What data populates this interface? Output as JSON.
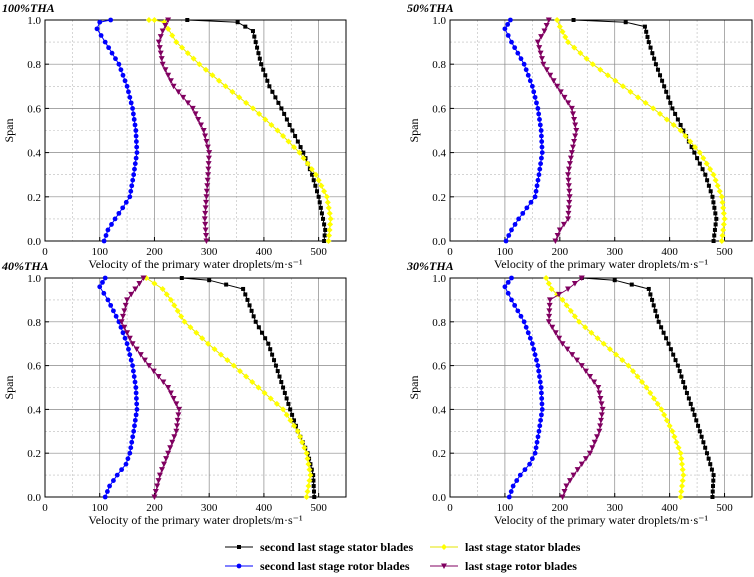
{
  "chart_data": [
    {
      "type": "line",
      "title": "100%THA",
      "xlabel": "Velocity of the primary water droplets/m·s⁻¹",
      "ylabel": "Span",
      "xlim": [
        0,
        550
      ],
      "ylim": [
        0,
        1.0
      ],
      "x_ticks": [
        "0",
        "100",
        "200",
        "300",
        "400",
        "500"
      ],
      "y_ticks": [
        "0.0",
        "0.2",
        "0.4",
        "0.6",
        "0.8",
        "1.0"
      ],
      "series": [
        {
          "name": "second last stage stator blades",
          "points": [
            [
              510,
              0
            ],
            [
              512,
              0.05
            ],
            [
              508,
              0.1
            ],
            [
              500,
              0.2
            ],
            [
              488,
              0.3
            ],
            [
              472,
              0.4
            ],
            [
              452,
              0.5
            ],
            [
              432,
              0.6
            ],
            [
              410,
              0.7
            ],
            [
              395,
              0.8
            ],
            [
              385,
              0.9
            ],
            [
              380,
              0.95
            ],
            [
              352,
              0.99
            ],
            [
              260,
              1.0
            ]
          ]
        },
        {
          "name": "last stage stator blades",
          "points": [
            [
              518,
              0
            ],
            [
              522,
              0.1
            ],
            [
              515,
              0.2
            ],
            [
              495,
              0.3
            ],
            [
              465,
              0.4
            ],
            [
              425,
              0.5
            ],
            [
              380,
              0.6
            ],
            [
              330,
              0.7
            ],
            [
              282,
              0.8
            ],
            [
              240,
              0.9
            ],
            [
              225,
              0.96
            ],
            [
              218,
              0.99
            ],
            [
              200,
              1.0
            ],
            [
              190,
              1.0
            ]
          ]
        },
        {
          "name": "second last stage rotor blades",
          "points": [
            [
              108,
              0
            ],
            [
              115,
              0.05
            ],
            [
              128,
              0.1
            ],
            [
              142,
              0.15
            ],
            [
              155,
              0.2
            ],
            [
              162,
              0.3
            ],
            [
              168,
              0.4
            ],
            [
              166,
              0.5
            ],
            [
              160,
              0.6
            ],
            [
              150,
              0.7
            ],
            [
              135,
              0.8
            ],
            [
              110,
              0.9
            ],
            [
              95,
              0.96
            ],
            [
              100,
              0.99
            ],
            [
              120,
              1.0
            ]
          ]
        },
        {
          "name": "last stage rotor blades",
          "points": [
            [
              295,
              0
            ],
            [
              292,
              0.1
            ],
            [
              295,
              0.2
            ],
            [
              298,
              0.3
            ],
            [
              300,
              0.4
            ],
            [
              290,
              0.5
            ],
            [
              270,
              0.6
            ],
            [
              235,
              0.7
            ],
            [
              215,
              0.8
            ],
            [
              208,
              0.9
            ],
            [
              215,
              0.95
            ],
            [
              225,
              1.0
            ]
          ]
        }
      ]
    },
    {
      "type": "line",
      "title": "50%THA",
      "xlabel": "Velocity of the primary water droplets/m·s⁻¹",
      "ylabel": "Span",
      "xlim": [
        0,
        550
      ],
      "ylim": [
        0,
        1.0
      ],
      "x_ticks": [
        "0",
        "100",
        "200",
        "300",
        "400",
        "500"
      ],
      "y_ticks": [
        "0.0",
        "0.2",
        "0.4",
        "0.6",
        "0.8",
        "1.0"
      ],
      "series": [
        {
          "name": "second last stage stator blades",
          "points": [
            [
              480,
              0
            ],
            [
              485,
              0.1
            ],
            [
              478,
              0.2
            ],
            [
              465,
              0.3
            ],
            [
              445,
              0.4
            ],
            [
              425,
              0.5
            ],
            [
              405,
              0.6
            ],
            [
              390,
              0.7
            ],
            [
              375,
              0.8
            ],
            [
              362,
              0.9
            ],
            [
              355,
              0.97
            ],
            [
              320,
              0.99
            ],
            [
              225,
              1.0
            ]
          ]
        },
        {
          "name": "last stage stator blades",
          "points": [
            [
              495,
              0
            ],
            [
              500,
              0.1
            ],
            [
              495,
              0.2
            ],
            [
              480,
              0.3
            ],
            [
              455,
              0.4
            ],
            [
              420,
              0.5
            ],
            [
              370,
              0.6
            ],
            [
              315,
              0.7
            ],
            [
              260,
              0.8
            ],
            [
              215,
              0.9
            ],
            [
              200,
              0.97
            ],
            [
              195,
              1.0
            ]
          ]
        },
        {
          "name": "second last stage rotor blades",
          "points": [
            [
              102,
              0
            ],
            [
              112,
              0.05
            ],
            [
              125,
              0.1
            ],
            [
              140,
              0.15
            ],
            [
              155,
              0.2
            ],
            [
              162,
              0.3
            ],
            [
              168,
              0.4
            ],
            [
              166,
              0.5
            ],
            [
              160,
              0.6
            ],
            [
              150,
              0.7
            ],
            [
              135,
              0.8
            ],
            [
              112,
              0.9
            ],
            [
              100,
              0.96
            ],
            [
              110,
              1.0
            ]
          ]
        },
        {
          "name": "last stage rotor blades",
          "points": [
            [
              192,
              0
            ],
            [
              200,
              0.05
            ],
            [
              215,
              0.1
            ],
            [
              218,
              0.2
            ],
            [
              215,
              0.3
            ],
            [
              222,
              0.4
            ],
            [
              230,
              0.5
            ],
            [
              222,
              0.6
            ],
            [
              195,
              0.7
            ],
            [
              170,
              0.8
            ],
            [
              160,
              0.9
            ],
            [
              172,
              0.95
            ],
            [
              180,
              1.0
            ]
          ]
        }
      ]
    },
    {
      "type": "line",
      "title": "40%THA",
      "xlabel": "Velocity of the primary water droplets/m·s⁻¹",
      "ylabel": "Span",
      "xlim": [
        0,
        550
      ],
      "ylim": [
        0,
        1.0
      ],
      "x_ticks": [
        "0",
        "100",
        "200",
        "300",
        "400",
        "500"
      ],
      "y_ticks": [
        "0.0",
        "0.2",
        "0.4",
        "0.6",
        "0.8",
        "1.0"
      ],
      "series": [
        {
          "name": "second last stage stator blades",
          "points": [
            [
              492,
              0
            ],
            [
              490,
              0.1
            ],
            [
              480,
              0.2
            ],
            [
              462,
              0.3
            ],
            [
              448,
              0.4
            ],
            [
              435,
              0.5
            ],
            [
              422,
              0.6
            ],
            [
              408,
              0.7
            ],
            [
              385,
              0.8
            ],
            [
              370,
              0.9
            ],
            [
              362,
              0.95
            ],
            [
              300,
              0.99
            ],
            [
              250,
              1.0
            ]
          ]
        },
        {
          "name": "last stage stator blades",
          "points": [
            [
              478,
              0
            ],
            [
              485,
              0.1
            ],
            [
              478,
              0.2
            ],
            [
              462,
              0.3
            ],
            [
              435,
              0.4
            ],
            [
              390,
              0.5
            ],
            [
              345,
              0.6
            ],
            [
              298,
              0.7
            ],
            [
              255,
              0.8
            ],
            [
              230,
              0.9
            ],
            [
              215,
              0.95
            ],
            [
              185,
              1.0
            ]
          ]
        },
        {
          "name": "second last stage rotor blades",
          "points": [
            [
              110,
              0
            ],
            [
              118,
              0.05
            ],
            [
              132,
              0.1
            ],
            [
              148,
              0.15
            ],
            [
              155,
              0.2
            ],
            [
              162,
              0.3
            ],
            [
              168,
              0.4
            ],
            [
              166,
              0.5
            ],
            [
              160,
              0.6
            ],
            [
              150,
              0.7
            ],
            [
              135,
              0.8
            ],
            [
              115,
              0.9
            ],
            [
              100,
              0.96
            ],
            [
              110,
              1.0
            ]
          ]
        },
        {
          "name": "last stage rotor blades",
          "points": [
            [
              200,
              0
            ],
            [
              210,
              0.1
            ],
            [
              225,
              0.2
            ],
            [
              240,
              0.3
            ],
            [
              245,
              0.4
            ],
            [
              225,
              0.5
            ],
            [
              190,
              0.6
            ],
            [
              160,
              0.7
            ],
            [
              140,
              0.8
            ],
            [
              150,
              0.9
            ],
            [
              165,
              0.95
            ],
            [
              180,
              1.0
            ]
          ]
        }
      ]
    },
    {
      "type": "line",
      "title": "30%THA",
      "xlabel": "Velocity of the primary water droplets/m·s⁻¹",
      "ylabel": "Span",
      "xlim": [
        0,
        550
      ],
      "ylim": [
        0,
        1.0
      ],
      "x_ticks": [
        "0",
        "100",
        "200",
        "300",
        "400",
        "500"
      ],
      "y_ticks": [
        "0.0",
        "0.2",
        "0.4",
        "0.6",
        "0.8",
        "1.0"
      ],
      "series": [
        {
          "name": "second last stage stator blades",
          "points": [
            [
              478,
              0
            ],
            [
              480,
              0.1
            ],
            [
              468,
              0.2
            ],
            [
              455,
              0.3
            ],
            [
              442,
              0.4
            ],
            [
              428,
              0.5
            ],
            [
              415,
              0.6
            ],
            [
              398,
              0.7
            ],
            [
              380,
              0.8
            ],
            [
              368,
              0.9
            ],
            [
              362,
              0.95
            ],
            [
              300,
              0.99
            ],
            [
              240,
              1.0
            ]
          ]
        },
        {
          "name": "last stage stator blades",
          "points": [
            [
              420,
              0
            ],
            [
              425,
              0.1
            ],
            [
              420,
              0.2
            ],
            [
              405,
              0.3
            ],
            [
              385,
              0.4
            ],
            [
              358,
              0.5
            ],
            [
              325,
              0.6
            ],
            [
              280,
              0.7
            ],
            [
              235,
              0.8
            ],
            [
              205,
              0.9
            ],
            [
              185,
              0.95
            ],
            [
              175,
              1.0
            ]
          ]
        },
        {
          "name": "second last stage rotor blades",
          "points": [
            [
              108,
              0
            ],
            [
              115,
              0.05
            ],
            [
              128,
              0.1
            ],
            [
              145,
              0.15
            ],
            [
              155,
              0.2
            ],
            [
              162,
              0.3
            ],
            [
              168,
              0.4
            ],
            [
              166,
              0.5
            ],
            [
              160,
              0.6
            ],
            [
              150,
              0.7
            ],
            [
              135,
              0.8
            ],
            [
              112,
              0.9
            ],
            [
              100,
              0.96
            ],
            [
              112,
              1.0
            ]
          ]
        },
        {
          "name": "last stage rotor blades",
          "points": [
            [
              205,
              0
            ],
            [
              212,
              0.05
            ],
            [
              225,
              0.1
            ],
            [
              255,
              0.2
            ],
            [
              272,
              0.3
            ],
            [
              278,
              0.4
            ],
            [
              270,
              0.5
            ],
            [
              240,
              0.6
            ],
            [
              205,
              0.7
            ],
            [
              180,
              0.8
            ],
            [
              182,
              0.9
            ],
            [
              215,
              0.95
            ],
            [
              240,
              1.0
            ]
          ]
        }
      ]
    }
  ],
  "legend": {
    "items": [
      {
        "label": "second last stage stator blades",
        "color": "#000000",
        "marker": "square"
      },
      {
        "label": "last stage stator blades",
        "color": "#ffff00",
        "marker": "diamond"
      },
      {
        "label": "second last stage rotor blades",
        "color": "#0000ff",
        "marker": "circle"
      },
      {
        "label": "last stage rotor blades",
        "color": "#800060",
        "marker": "triangle-down"
      }
    ]
  },
  "colors": {
    "stator_second_last": "#000000",
    "stator_last": "#ffff00",
    "rotor_second_last": "#0000ff",
    "rotor_last": "#800060",
    "grid": "#aaaaaa"
  }
}
